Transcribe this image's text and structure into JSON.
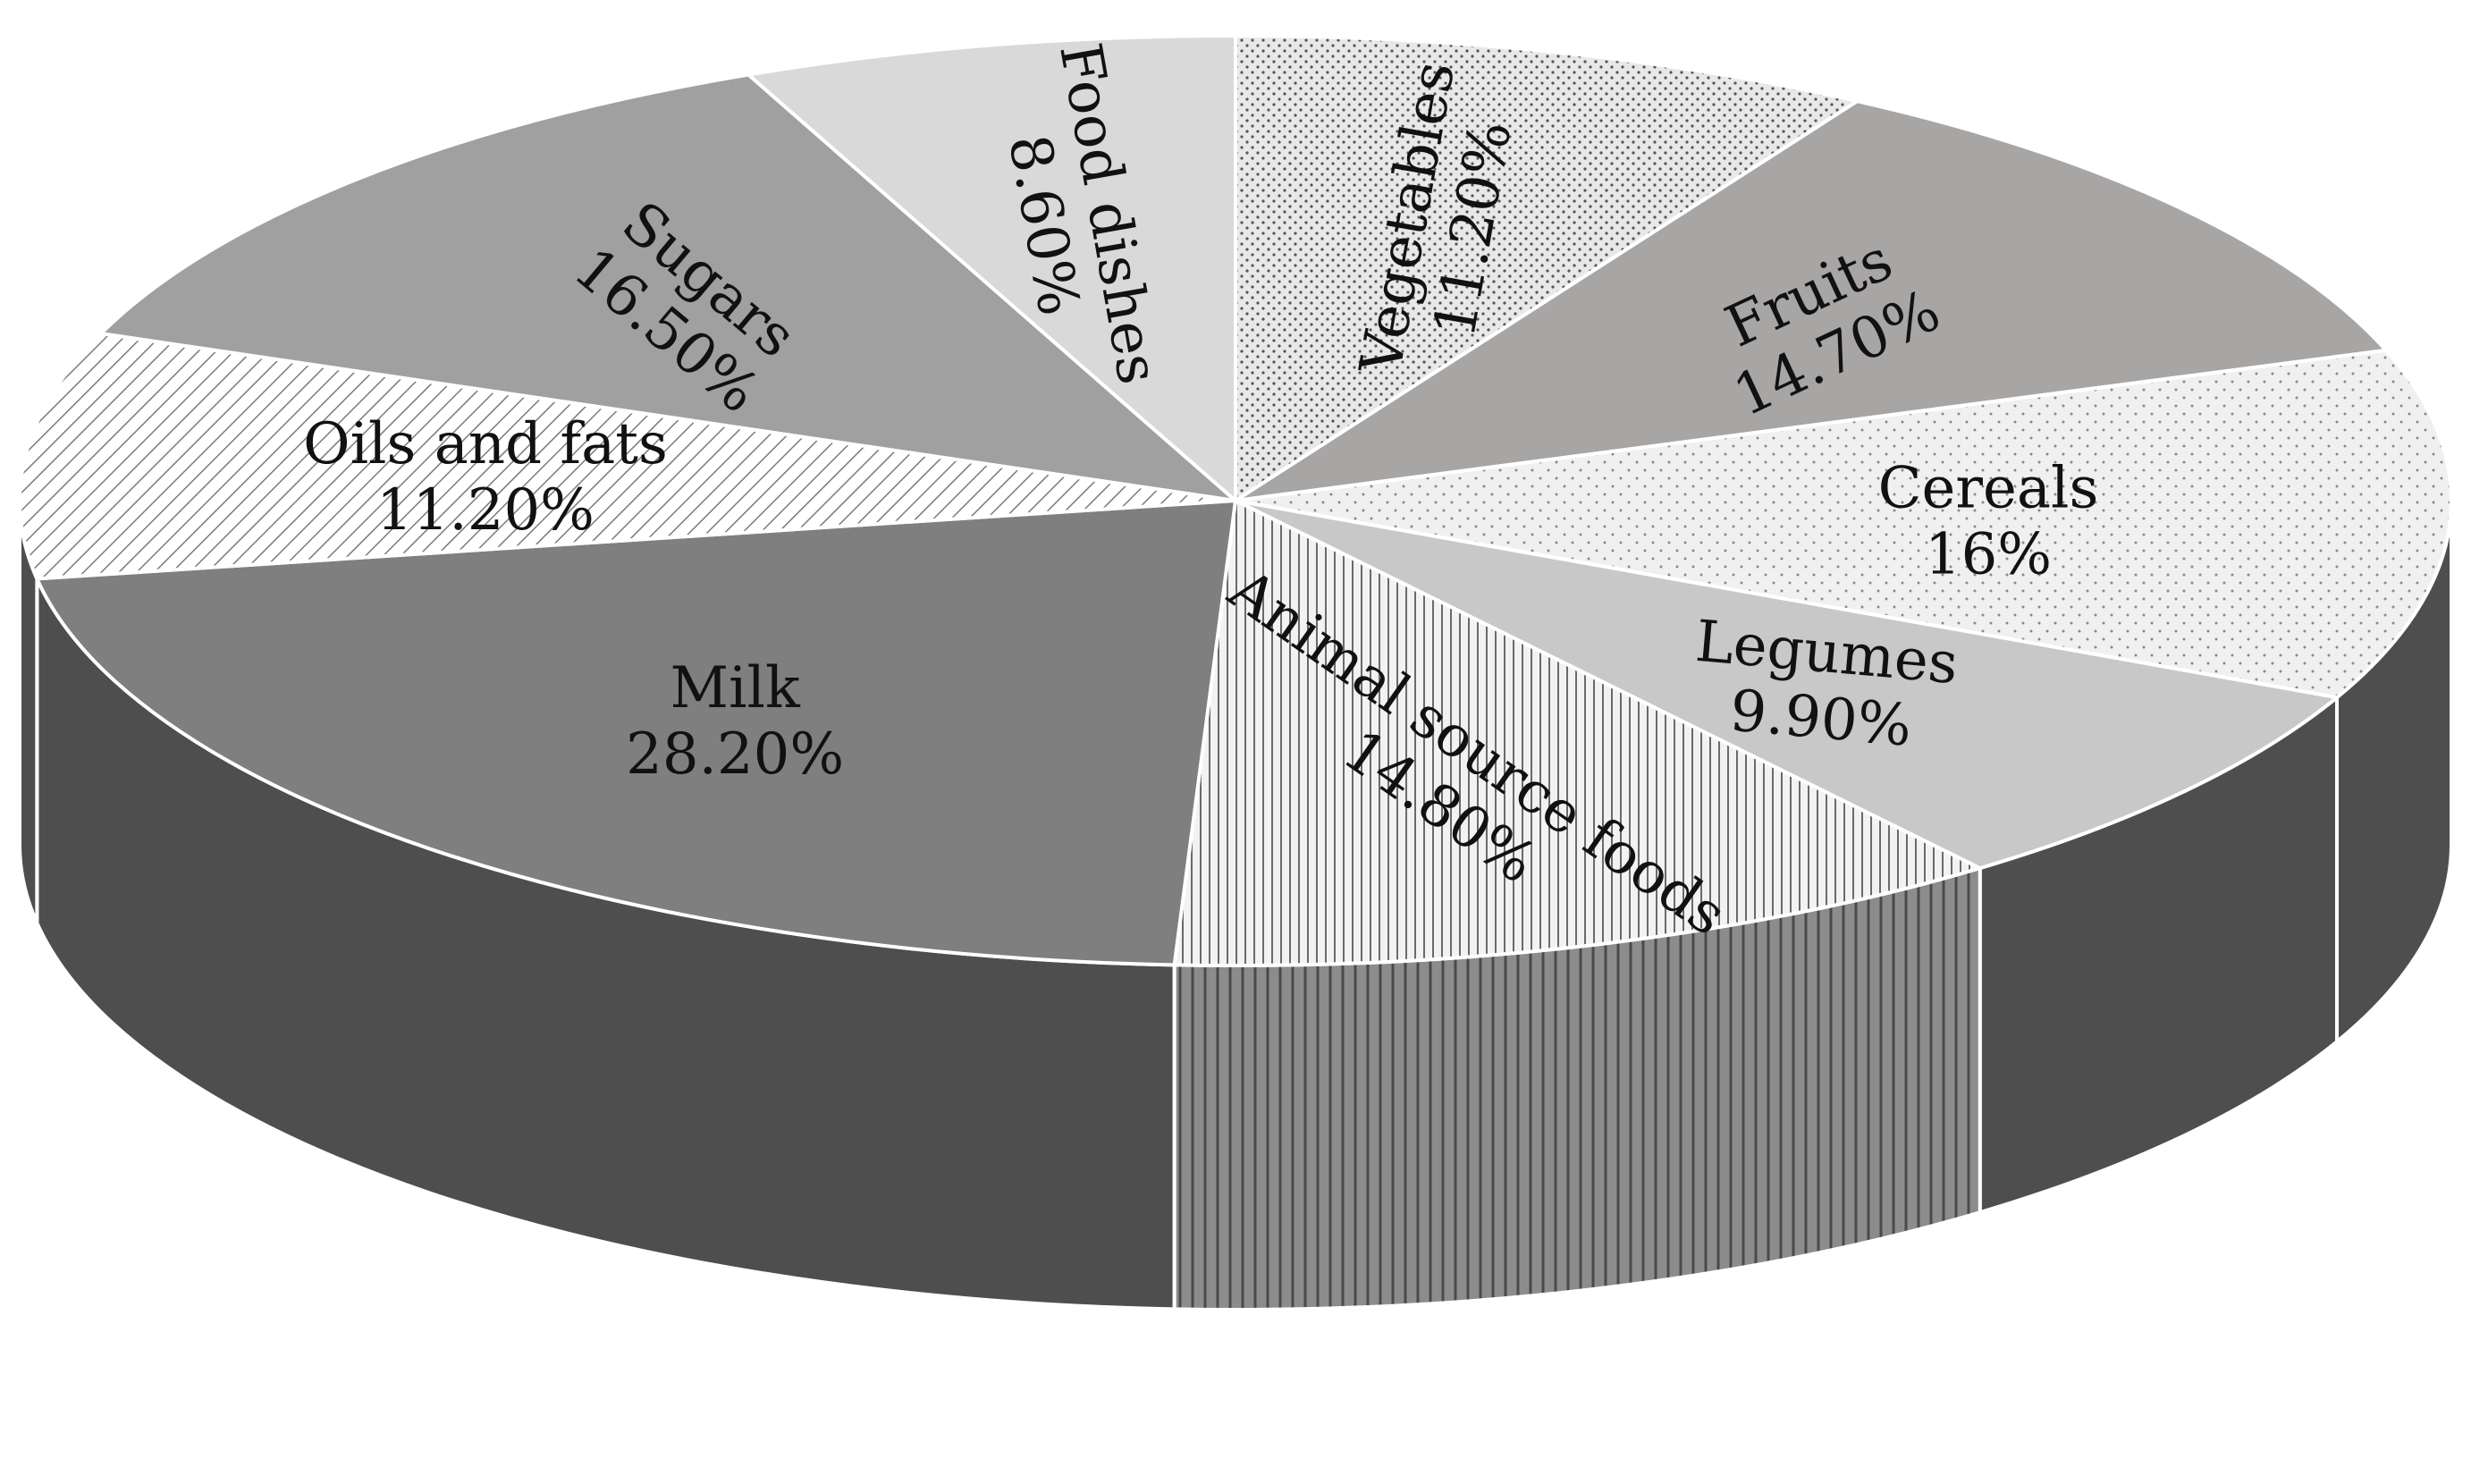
{
  "chart_data": {
    "type": "pie",
    "title": "",
    "slices": [
      {
        "label": "Vegetables",
        "value_label": "11.20%",
        "value": 11.2,
        "fill": "#e8e8e8",
        "pattern": "dots-dense",
        "label_rotation": -80
      },
      {
        "label": "Fruits",
        "value_label": "14.70%",
        "value": 14.7,
        "fill": "#a8a5a5",
        "pattern": "none",
        "label_rotation": -25
      },
      {
        "label": "Cereals",
        "value_label": "16%",
        "value": 16.0,
        "fill": "#f0f0f0",
        "pattern": "dots-sparse",
        "label_rotation": 0
      },
      {
        "label": "Legumes",
        "value_label": "9.90%",
        "value": 9.9,
        "fill": "#c8c8c8",
        "pattern": "none",
        "label_rotation": 5
      },
      {
        "label": "Animal source foods",
        "value_label": "14.80%",
        "value": 14.8,
        "fill": "#f2f2f2",
        "pattern": "vertical-lines",
        "label_rotation": 35
      },
      {
        "label": "Milk",
        "value_label": "28.20%",
        "value": 28.2,
        "fill": "#7f7f7f",
        "pattern": "none",
        "label_rotation": 0
      },
      {
        "label": "Oils and fats",
        "value_label": "11.20%",
        "value": 11.2,
        "fill": "#ffffff",
        "pattern": "diagonal-lines",
        "label_rotation": 0
      },
      {
        "label": "Sugars",
        "value_label": "16.50%",
        "value": 16.5,
        "fill": "#a0a0a0",
        "pattern": "none",
        "label_rotation": 40
      },
      {
        "label": "Food dishes",
        "value_label": "8.60%",
        "value": 8.6,
        "fill": "#d9d9d9",
        "pattern": "none",
        "label_rotation": 80
      }
    ],
    "three_d": true,
    "legend": "none"
  }
}
